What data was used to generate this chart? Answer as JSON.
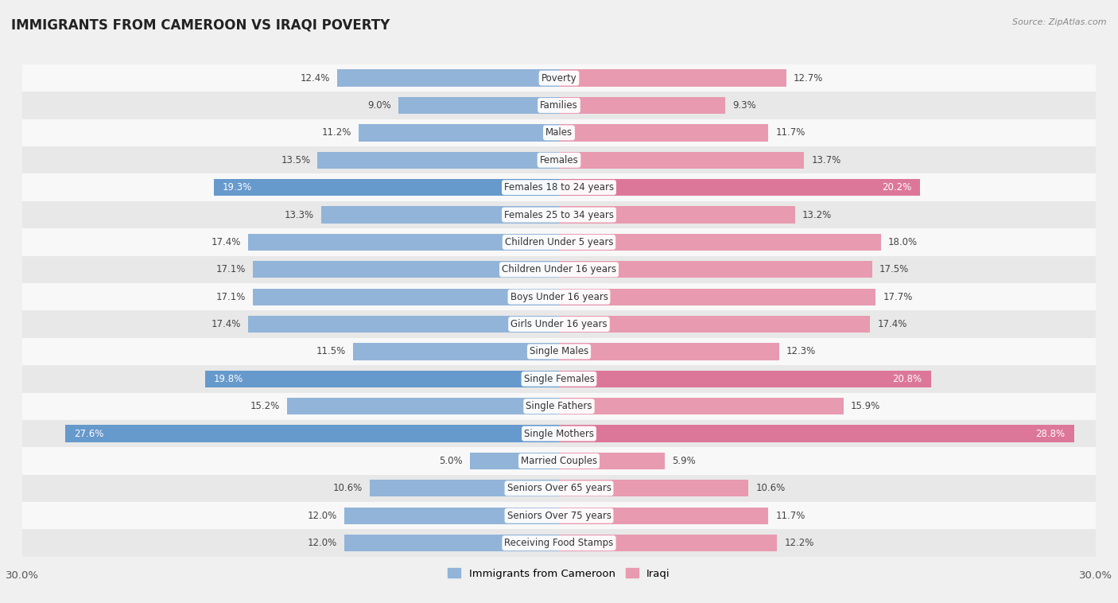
{
  "title": "IMMIGRANTS FROM CAMEROON VS IRAQI POVERTY",
  "source": "Source: ZipAtlas.com",
  "categories": [
    "Poverty",
    "Families",
    "Males",
    "Females",
    "Females 18 to 24 years",
    "Females 25 to 34 years",
    "Children Under 5 years",
    "Children Under 16 years",
    "Boys Under 16 years",
    "Girls Under 16 years",
    "Single Males",
    "Single Females",
    "Single Fathers",
    "Single Mothers",
    "Married Couples",
    "Seniors Over 65 years",
    "Seniors Over 75 years",
    "Receiving Food Stamps"
  ],
  "cameroon_values": [
    12.4,
    9.0,
    11.2,
    13.5,
    19.3,
    13.3,
    17.4,
    17.1,
    17.1,
    17.4,
    11.5,
    19.8,
    15.2,
    27.6,
    5.0,
    10.6,
    12.0,
    12.0
  ],
  "iraqi_values": [
    12.7,
    9.3,
    11.7,
    13.7,
    20.2,
    13.2,
    18.0,
    17.5,
    17.7,
    17.4,
    12.3,
    20.8,
    15.9,
    28.8,
    5.9,
    10.6,
    11.7,
    12.2
  ],
  "cameroon_color": "#92b4d8",
  "iraqi_color": "#e89ab0",
  "cameroon_highlight_color": "#6699cc",
  "iraqi_highlight_color": "#dd7799",
  "highlight_rows": [
    4,
    11,
    13
  ],
  "xlim": 30.0,
  "background_color": "#f0f0f0",
  "row_bg_light": "#f8f8f8",
  "row_bg_dark": "#e8e8e8",
  "label_fontsize": 8.5,
  "value_fontsize": 8.5,
  "title_fontsize": 12,
  "legend_labels": [
    "Immigrants from Cameroon",
    "Iraqi"
  ],
  "bar_height": 0.62
}
